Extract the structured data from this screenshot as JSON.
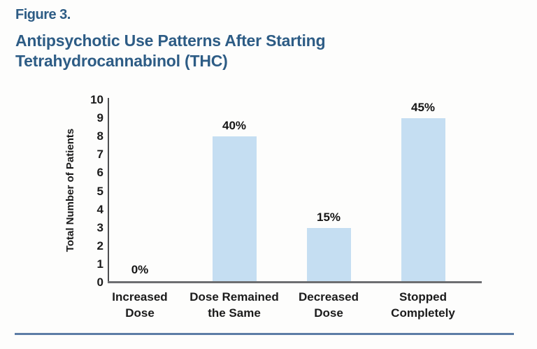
{
  "figure": {
    "label": "Figure 3.",
    "title": "Antipsychotic Use Patterns After Starting Tetrahydrocannabinol (THC)",
    "title_lines": [
      "Antipsychotic Use Patterns After Starting",
      "Tetrahydrocannabinol (THC)"
    ]
  },
  "chart_data": {
    "type": "bar",
    "title": "Antipsychotic Use Patterns After Starting Tetrahydrocannabinol (THC)",
    "categories": [
      "Increased Dose",
      "Dose Remained the Same",
      "Decreased Dose",
      "Stopped Completely"
    ],
    "category_tick_lines": [
      [
        "Increased",
        "Dose"
      ],
      [
        "Dose Remained",
        "the Same"
      ],
      [
        "Decreased",
        "Dose"
      ],
      [
        "Stopped",
        "Completely"
      ]
    ],
    "values": [
      0,
      8,
      3,
      9
    ],
    "bar_labels": [
      "0%",
      "40%",
      "15%",
      "45%"
    ],
    "xlabel": "",
    "ylabel": "Total Number of Patients",
    "ylim": [
      0,
      10
    ],
    "yticks": [
      0,
      1,
      2,
      3,
      4,
      5,
      6,
      7,
      8,
      9,
      10
    ],
    "grid": false,
    "legend": null,
    "bar_color": "#c5def2"
  },
  "colors": {
    "title_blue": "#2d5c85",
    "bar_fill": "#c5def2",
    "y_axis_line": "#4d4e50",
    "x_axis_line": "#6d6e71",
    "text": "#1b1b1b",
    "divider_blue": "#5d7da6",
    "background": "#fdfdfc"
  }
}
